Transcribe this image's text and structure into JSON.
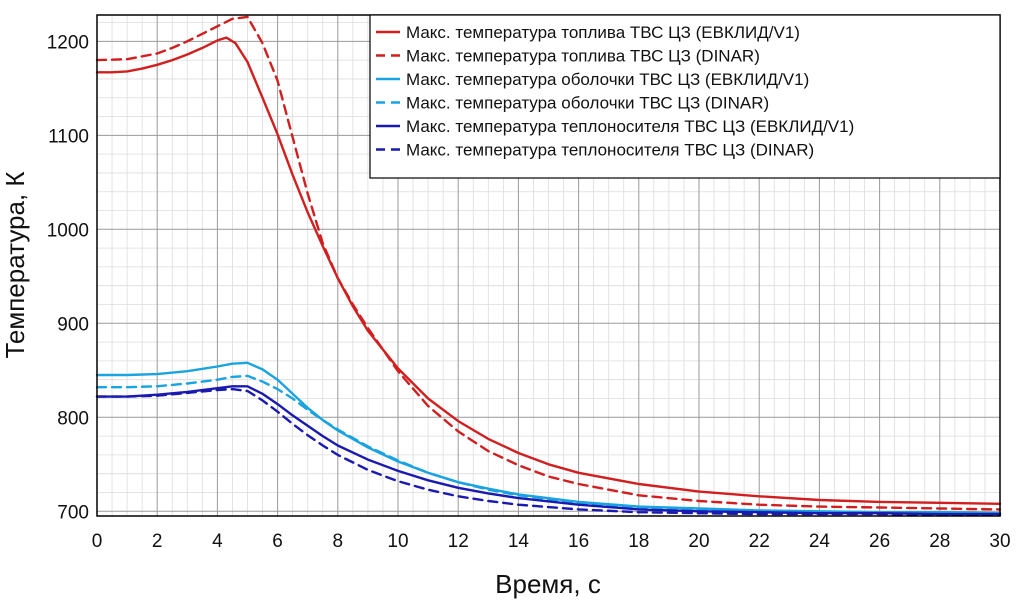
{
  "chart_data": {
    "type": "line",
    "xlabel": "Время, с",
    "ylabel": "Температура, К",
    "xlim": [
      0,
      30
    ],
    "ylim": [
      695,
      1228
    ],
    "x_ticks": [
      0,
      2,
      4,
      6,
      8,
      10,
      12,
      14,
      16,
      18,
      20,
      22,
      24,
      26,
      28,
      30
    ],
    "y_ticks": [
      700,
      800,
      900,
      1000,
      1100,
      1200
    ],
    "grid": true,
    "minor_grid": true,
    "legend_position": "top-right",
    "series": [
      {
        "name": "Макс. температура топлива ТВС ЦЗ (ЕВКЛИД/V1)",
        "color": "#d11f1f",
        "dashed": false,
        "x": [
          0,
          0.5,
          1,
          1.5,
          2,
          2.5,
          3,
          3.5,
          4,
          4.3,
          4.6,
          5,
          5.5,
          6,
          6.5,
          7,
          7.5,
          8,
          8.5,
          9,
          10,
          11,
          12,
          13,
          14,
          15,
          16,
          18,
          20,
          22,
          24,
          26,
          28,
          30
        ],
        "y": [
          1167,
          1167,
          1168,
          1171,
          1175,
          1180,
          1186,
          1193,
          1201,
          1204,
          1198,
          1178,
          1140,
          1101,
          1058,
          1018,
          982,
          948,
          918,
          892,
          852,
          820,
          796,
          777,
          762,
          750,
          741,
          729,
          721,
          716,
          712,
          710,
          709,
          708
        ]
      },
      {
        "name": "Макс. температура топлива ТВС ЦЗ (DINAR)",
        "color": "#d11f1f",
        "dashed": true,
        "x": [
          0,
          1,
          2,
          2.5,
          3,
          3.5,
          4,
          4.5,
          5,
          5.5,
          6,
          6.5,
          7,
          7.5,
          8,
          8.5,
          9,
          10,
          11,
          12,
          13,
          14,
          15,
          16,
          18,
          20,
          22,
          24,
          26,
          28,
          30
        ],
        "y": [
          1180,
          1181,
          1187,
          1193,
          1200,
          1208,
          1216,
          1224,
          1226,
          1198,
          1158,
          1098,
          1038,
          985,
          948,
          920,
          895,
          849,
          812,
          785,
          764,
          749,
          737,
          729,
          717,
          711,
          707,
          705,
          704,
          703,
          702
        ]
      },
      {
        "name": "Макс. температура оболочки ТВС ЦЗ (ЕВКЛИД/V1)",
        "color": "#19a3e0",
        "dashed": false,
        "x": [
          0,
          1,
          2,
          3,
          4,
          4.5,
          5,
          5.5,
          6,
          6.5,
          7,
          7.5,
          8,
          9,
          10,
          11,
          12,
          13,
          14,
          16,
          18,
          20,
          22,
          24,
          26,
          28,
          30
        ],
        "y": [
          845,
          845,
          846,
          849,
          854,
          857,
          858,
          851,
          840,
          825,
          810,
          797,
          786,
          768,
          753,
          741,
          731,
          724,
          718,
          710,
          705,
          703,
          701,
          700,
          699,
          699,
          698
        ]
      },
      {
        "name": "Макс. температура оболочки ТВС ЦЗ (DINAR)",
        "color": "#19a3e0",
        "dashed": true,
        "x": [
          0,
          1,
          2,
          3,
          4,
          4.5,
          5,
          5.5,
          6,
          6.5,
          7,
          7.5,
          8,
          9,
          10,
          11,
          12,
          13,
          14,
          16,
          18,
          20,
          22,
          24,
          26,
          28,
          30
        ],
        "y": [
          832,
          832,
          833,
          836,
          840,
          843,
          844,
          838,
          830,
          820,
          808,
          797,
          787,
          769,
          754,
          741,
          731,
          723,
          717,
          709,
          704,
          702,
          700,
          699,
          699,
          698,
          698
        ]
      },
      {
        "name": "Макс. температура теплоносителя  ТВС ЦЗ (ЕВКЛИД/V1)",
        "color": "#1a1ab0",
        "dashed": false,
        "x": [
          0,
          1,
          2,
          3,
          4,
          4.5,
          5,
          5.5,
          6,
          6.5,
          7,
          7.5,
          8,
          9,
          10,
          11,
          12,
          13,
          14,
          16,
          18,
          20,
          22,
          24,
          26,
          28,
          30
        ],
        "y": [
          822,
          822,
          824,
          827,
          831,
          833,
          833,
          825,
          814,
          802,
          791,
          780,
          770,
          755,
          743,
          733,
          725,
          719,
          714,
          707,
          702,
          700,
          699,
          698,
          698,
          697,
          697
        ]
      },
      {
        "name": "Макс. температура теплоносителя  ТВС ЦЗ (DINAR)",
        "color": "#1a1ab0",
        "dashed": true,
        "x": [
          0,
          1,
          2,
          3,
          4,
          4.5,
          5,
          5.5,
          6,
          6.5,
          7,
          7.5,
          8,
          9,
          10,
          11,
          12,
          13,
          14,
          16,
          18,
          20,
          22,
          24,
          26,
          28,
          30
        ],
        "y": [
          822,
          822,
          823,
          826,
          829,
          830,
          828,
          818,
          806,
          793,
          781,
          770,
          760,
          744,
          732,
          723,
          716,
          711,
          707,
          702,
          699,
          698,
          697,
          697,
          697,
          696,
          696
        ]
      }
    ]
  }
}
